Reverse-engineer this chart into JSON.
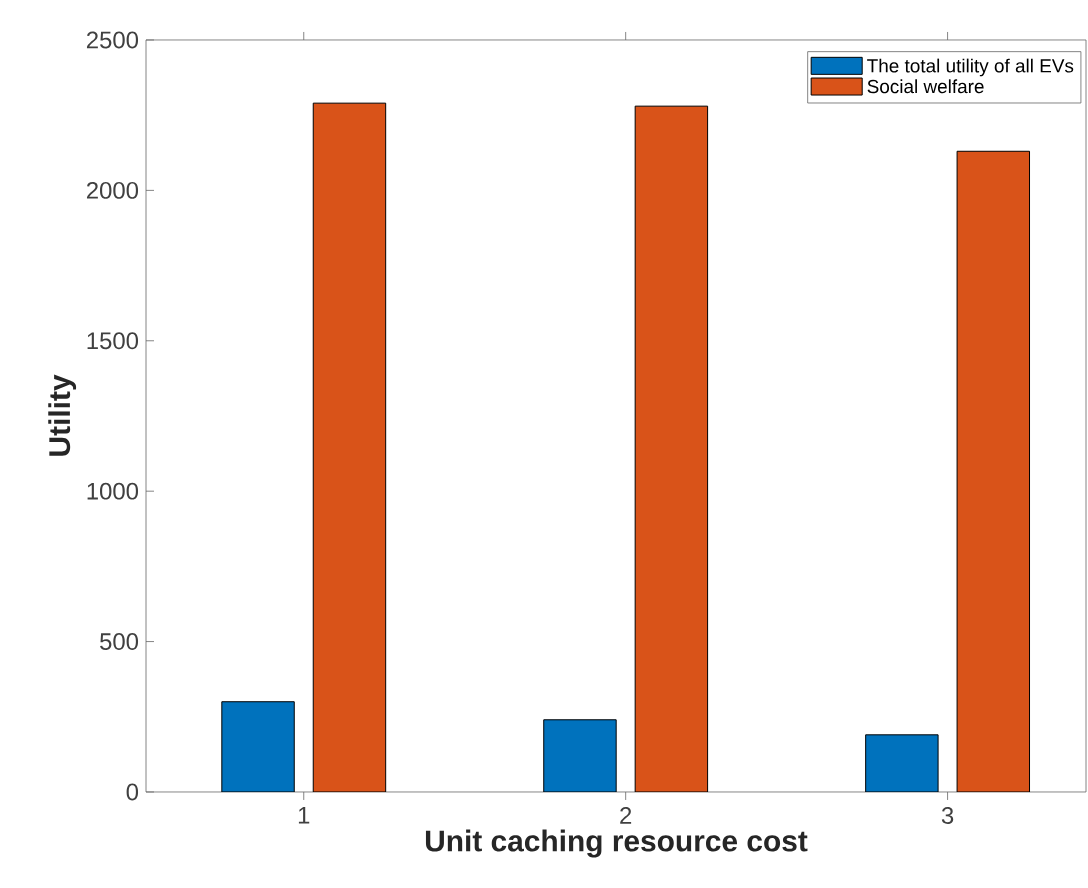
{
  "chart_data": {
    "type": "bar",
    "xlabel": "Unit caching resource cost",
    "ylabel": "Utility",
    "categories": [
      "1",
      "2",
      "3"
    ],
    "series": [
      {
        "name": "The total utility of all EVs",
        "color": "#0072bd",
        "values": [
          300,
          240,
          190
        ]
      },
      {
        "name": "Social welfare",
        "color": "#d95319",
        "values": [
          2290,
          2280,
          2130
        ]
      }
    ],
    "ylim": [
      0,
      2500
    ],
    "yticks": [
      0,
      500,
      1000,
      1500,
      2000,
      2500
    ],
    "grid": false,
    "legend": "top right"
  }
}
